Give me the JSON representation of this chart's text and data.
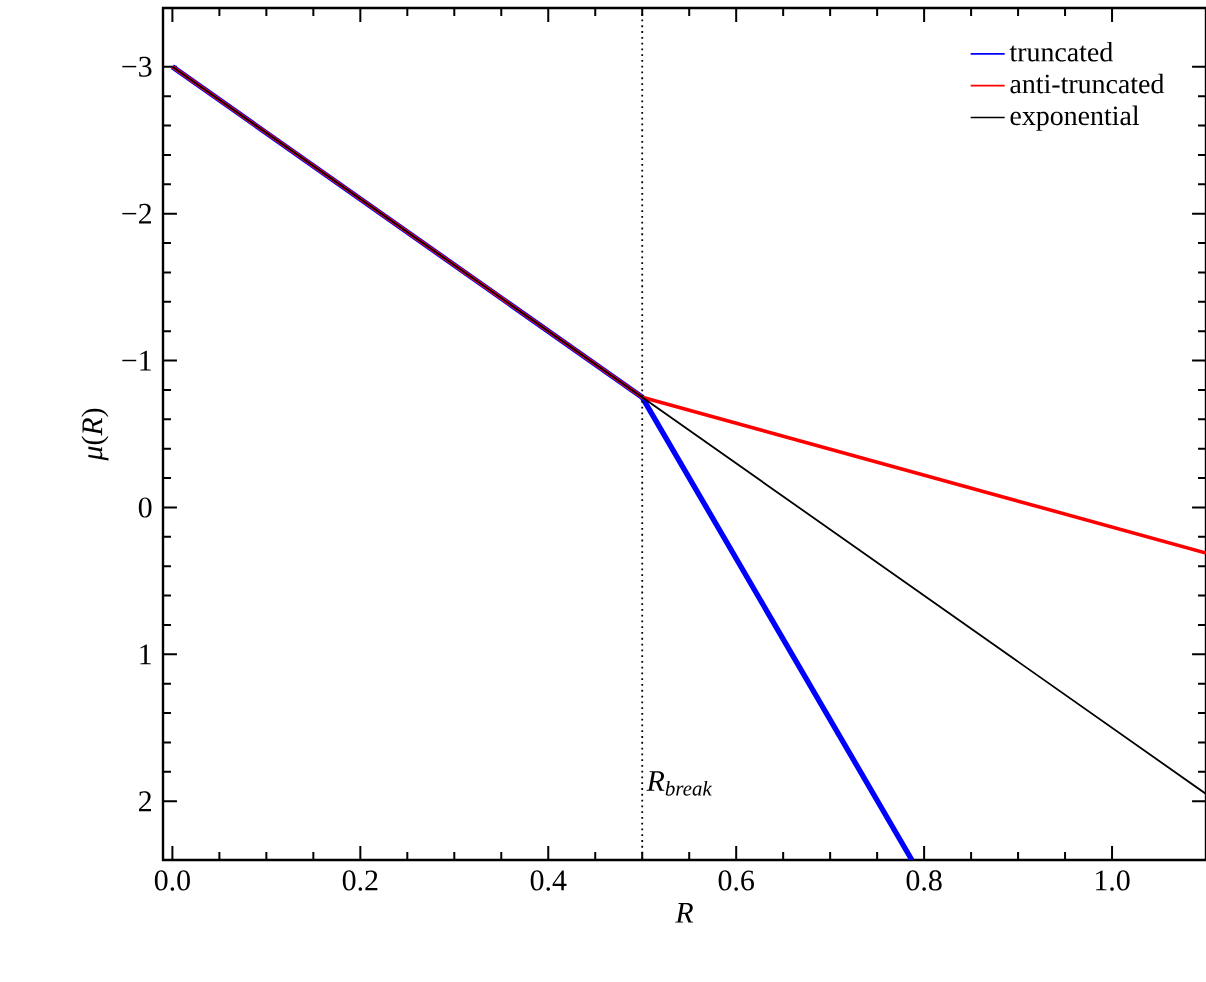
{
  "chart_data": {
    "type": "line",
    "xlabel": "R",
    "ylabel": "*μ*(*R*)",
    "series": [
      {
        "name": "truncated",
        "color": "#0000ff",
        "x": [
          0,
          0.5,
          0.787
        ],
        "values": [
          -3,
          -0.75,
          2.4
        ]
      },
      {
        "name": "anti-truncated",
        "color": "#ff0000",
        "x": [
          0,
          0.5,
          1.1
        ],
        "values": [
          -3,
          -0.75,
          0.31
        ]
      },
      {
        "name": "exponential",
        "color": "#000000",
        "x": [
          0,
          0.5,
          1.1
        ],
        "values": [
          -3,
          -0.75,
          1.95
        ]
      }
    ],
    "xlim": [
      -0.01,
      1.1
    ],
    "ylim": [
      2.4,
      -3.4
    ],
    "xticks": [
      {
        "value": 0,
        "label": "0.0"
      },
      0.2,
      0.4,
      0.6,
      0.8,
      {
        "value": 1,
        "label": "1.0"
      }
    ],
    "yticks": [
      {
        "value": -3,
        "label": "−3"
      },
      {
        "value": -2,
        "label": "−2"
      },
      {
        "value": -1,
        "label": "−1"
      },
      0,
      1,
      2
    ],
    "ref_lines": [
      {
        "axis": "x",
        "value": 0.5,
        "label": "R$_{break}$",
        "line_style": "dotted",
        "color": "#000000"
      }
    ],
    "legend": "top right",
    "grid": false,
    "marker": "none",
    "line_style": "solid"
  }
}
